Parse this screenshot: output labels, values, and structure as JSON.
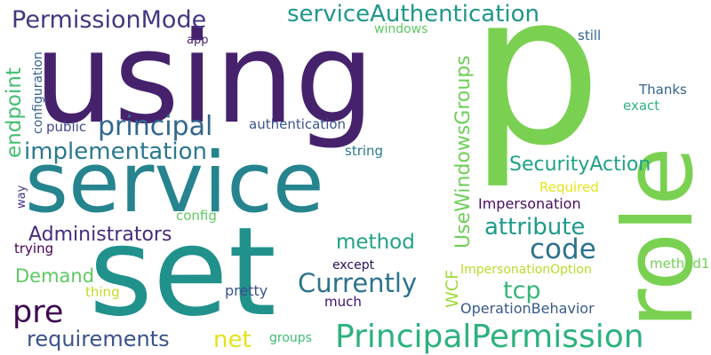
{
  "words": [
    {
      "id": "using",
      "text": "using",
      "color": "#46226d",
      "rot": 0
    },
    {
      "id": "p",
      "text": "p",
      "color": "#7ad151",
      "rot": 0
    },
    {
      "id": "role",
      "text": "role",
      "color": "#7ad151",
      "rot": -90
    },
    {
      "id": "service",
      "text": "service",
      "color": "#25848e",
      "rot": 0
    },
    {
      "id": "set",
      "text": "set",
      "color": "#21918c",
      "rot": 0
    },
    {
      "id": "PrincipalPermission",
      "text": "PrincipalPermission",
      "color": "#2db27d",
      "rot": 0
    },
    {
      "id": "PermissionMode",
      "text": "PermissionMode",
      "color": "#453781",
      "rot": 0
    },
    {
      "id": "serviceAuthentication",
      "text": "serviceAuthentication",
      "color": "#1f968b",
      "rot": 0
    },
    {
      "id": "principal",
      "text": "principal",
      "color": "#31668e",
      "rot": 0
    },
    {
      "id": "implementation",
      "text": "implementation",
      "color": "#2a788e",
      "rot": 0
    },
    {
      "id": "endpoint",
      "text": "endpoint",
      "color": "#42be71",
      "rot": -90
    },
    {
      "id": "configuration",
      "text": "configuration",
      "color": "#34618d",
      "rot": -90
    },
    {
      "id": "public",
      "text": "public",
      "color": "#3e4a89",
      "rot": 0
    },
    {
      "id": "authentication",
      "text": "authentication",
      "color": "#3a548c",
      "rot": 0
    },
    {
      "id": "app",
      "text": "app",
      "color": "#482475",
      "rot": 0
    },
    {
      "id": "windows",
      "text": "windows",
      "color": "#5ec962",
      "rot": 0
    },
    {
      "id": "still",
      "text": "still",
      "color": "#32648e",
      "rot": 0
    },
    {
      "id": "UseWindowsGroups",
      "text": "UseWindowsGroups",
      "color": "#6ece58",
      "rot": -90
    },
    {
      "id": "Thanks",
      "text": "Thanks",
      "color": "#33638d",
      "rot": 0
    },
    {
      "id": "exact",
      "text": "exact",
      "color": "#2fb47c",
      "rot": 0
    },
    {
      "id": "string",
      "text": "string",
      "color": "#2a788e",
      "rot": 0
    },
    {
      "id": "SecurityAction",
      "text": "SecurityAction",
      "color": "#1fa188",
      "rot": 0
    },
    {
      "id": "Required",
      "text": "Required",
      "color": "#e6e419",
      "rot": 0
    },
    {
      "id": "Impersonation",
      "text": "Impersonation",
      "color": "#470d60",
      "rot": 0
    },
    {
      "id": "attribute",
      "text": "attribute",
      "color": "#1e9b8a",
      "rot": 0
    },
    {
      "id": "code",
      "text": "code",
      "color": "#2c728e",
      "rot": 0
    },
    {
      "id": "way",
      "text": "way",
      "color": "#46337f",
      "rot": -90
    },
    {
      "id": "config",
      "text": "config",
      "color": "#5ec962",
      "rot": 0
    },
    {
      "id": "Administrators",
      "text": "Administrators",
      "color": "#472c7a",
      "rot": 0
    },
    {
      "id": "method",
      "text": "method",
      "color": "#20a386",
      "rot": 0
    },
    {
      "id": "trying",
      "text": "trying",
      "color": "#440154",
      "rot": 0
    },
    {
      "id": "Demand",
      "text": "Demand",
      "color": "#5ec962",
      "rot": 0
    },
    {
      "id": "except",
      "text": "except",
      "color": "#2a0f59",
      "rot": 0
    },
    {
      "id": "WCF",
      "text": "WCF",
      "color": "#9fda3a",
      "rot": -90
    },
    {
      "id": "ImpersonationOption",
      "text": "ImpersonationOption",
      "color": "#b5de2b",
      "rot": 0
    },
    {
      "id": "method1",
      "text": "method1",
      "color": "#73d056",
      "rot": 0
    },
    {
      "id": "Currently",
      "text": "Currently",
      "color": "#2c738e",
      "rot": 0
    },
    {
      "id": "tcp",
      "text": "tcp",
      "color": "#35b779",
      "rot": 0
    },
    {
      "id": "thing",
      "text": "thing",
      "color": "#bddf26",
      "rot": 0
    },
    {
      "id": "pretty",
      "text": "pretty",
      "color": "#3b518b",
      "rot": 0
    },
    {
      "id": "pre",
      "text": "pre",
      "color": "#3e0751",
      "rot": 0
    },
    {
      "id": "much",
      "text": "much",
      "color": "#3b0f70",
      "rot": 0
    },
    {
      "id": "OperationBehavior",
      "text": "OperationBehavior",
      "color": "#38598c",
      "rot": 0
    },
    {
      "id": "requirements",
      "text": "requirements",
      "color": "#3b528b",
      "rot": 0
    },
    {
      "id": "net",
      "text": "net",
      "color": "#e4e31a",
      "rot": 0
    },
    {
      "id": "groups",
      "text": "groups",
      "color": "#3fbc73",
      "rot": 0
    }
  ]
}
